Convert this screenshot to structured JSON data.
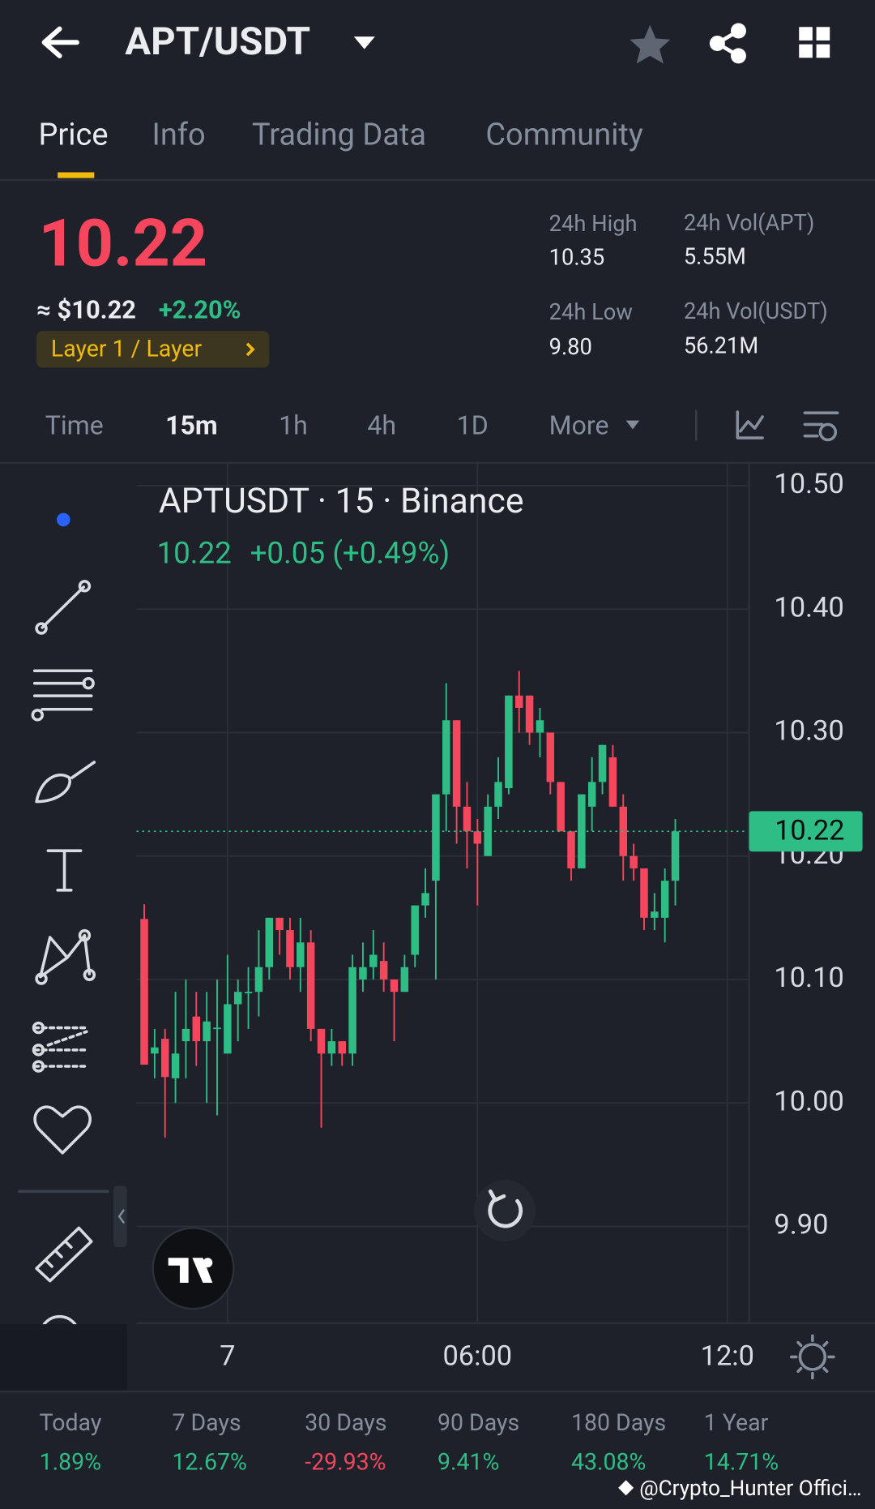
{
  "header": {
    "pair": "APT/USDT"
  },
  "tabs": [
    "Price",
    "Info",
    "Trading Data",
    "Community"
  ],
  "price": {
    "last": "10.22",
    "usd": "≈ $10.22",
    "change": "+2.20%",
    "tag": "Layer 1 / Layer",
    "stats": [
      {
        "label": "24h High",
        "value": "10.35"
      },
      {
        "label": "24h Vol(APT)",
        "value": "5.55M"
      },
      {
        "label": "24h Low",
        "value": "9.80"
      },
      {
        "label": "24h Vol(USDT)",
        "value": "56.21M"
      }
    ]
  },
  "intervals": [
    "Time",
    "15m",
    "1h",
    "4h",
    "1D",
    "More"
  ],
  "chart_data": {
    "type": "candlestick",
    "title": "APTUSDT · 15 · Binance",
    "legend_price": "10.22",
    "legend_change": "+0.05 (+0.49%)",
    "open": [
      10.149,
      10.04,
      10.052,
      10.02,
      10.05,
      10.07,
      10.05,
      10.06,
      10.04,
      10.08,
      10.09,
      10.09,
      10.11,
      10.15,
      10.14,
      10.11,
      10.13,
      10.06,
      10.04,
      10.05,
      10.04,
      10.1,
      10.11,
      10.115,
      10.1,
      10.09,
      10.12,
      10.16,
      10.18,
      10.25,
      10.31,
      10.24,
      10.22,
      10.2,
      10.24,
      10.255,
      10.33,
      10.33,
      10.3,
      10.3,
      10.26,
      10.22,
      10.19,
      10.24,
      10.26,
      10.28,
      10.24,
      10.2,
      10.19,
      10.15,
      10.15,
      10.18
    ],
    "high": [
      10.161,
      10.06,
      10.06,
      10.09,
      10.1,
      10.09,
      10.09,
      10.1,
      10.12,
      10.1,
      10.11,
      10.14,
      10.15,
      10.15,
      10.15,
      10.15,
      10.14,
      10.06,
      10.06,
      10.05,
      10.12,
      10.13,
      10.14,
      10.13,
      10.1,
      10.12,
      10.16,
      10.19,
      10.25,
      10.34,
      10.31,
      10.26,
      10.23,
      10.25,
      10.28,
      10.33,
      10.35,
      10.33,
      10.32,
      10.3,
      10.26,
      10.22,
      10.25,
      10.28,
      10.29,
      10.29,
      10.25,
      10.21,
      10.19,
      10.17,
      10.19,
      10.23
    ],
    "low": [
      10.031,
      10.02,
      9.972,
      10.0,
      10.02,
      10.03,
      10.0,
      9.99,
      10.04,
      10.05,
      10.06,
      10.07,
      10.1,
      10.12,
      10.1,
      10.09,
      10.05,
      9.98,
      10.03,
      10.03,
      10.03,
      10.09,
      10.1,
      10.09,
      10.05,
      10.09,
      10.11,
      10.15,
      10.1,
      10.22,
      10.21,
      10.19,
      10.16,
      10.2,
      10.23,
      10.25,
      10.3,
      10.29,
      10.28,
      10.25,
      10.22,
      10.18,
      10.19,
      10.22,
      10.25,
      10.24,
      10.18,
      10.18,
      10.14,
      10.14,
      10.13,
      10.16
    ],
    "close": [
      10.031,
      10.045,
      10.021,
      10.04,
      10.06,
      10.05,
      10.066,
      10.061,
      10.08,
      10.09,
      10.09,
      10.11,
      10.15,
      10.14,
      10.11,
      10.13,
      10.06,
      10.04,
      10.05,
      10.04,
      10.11,
      10.11,
      10.12,
      10.1,
      10.09,
      10.11,
      10.16,
      10.17,
      10.25,
      10.31,
      10.24,
      10.22,
      10.21,
      10.24,
      10.26,
      10.33,
      10.32,
      10.3,
      10.31,
      10.26,
      10.22,
      10.19,
      10.25,
      10.26,
      10.29,
      10.24,
      10.2,
      10.19,
      10.15,
      10.155,
      10.18,
      10.22
    ],
    "up_color": "#2ebd85",
    "down_color": "#f6465d",
    "ylim": [
      9.82,
      10.52
    ],
    "yticks": [
      {
        "value": 10.5,
        "label": "10.50"
      },
      {
        "value": 10.4,
        "label": "10.40"
      },
      {
        "value": 10.3,
        "label": "10.30"
      },
      {
        "value": 10.2,
        "label": "10.20"
      },
      {
        "value": 10.1,
        "label": "10.10"
      },
      {
        "value": 10.0,
        "label": "10.00"
      },
      {
        "value": 9.9,
        "label": "9.90"
      }
    ],
    "xticks": [
      {
        "value": 8,
        "label": "7"
      },
      {
        "value": 32,
        "label": "06:00"
      },
      {
        "value": 56,
        "label": "12:0"
      }
    ],
    "last": 10.22,
    "grid": true
  },
  "performance": [
    {
      "label": "Today",
      "value": "1.89%"
    },
    {
      "label": "7 Days",
      "value": "12.67%"
    },
    {
      "label": "30 Days",
      "value": "-29.93%"
    },
    {
      "label": "90 Days",
      "value": "9.41%"
    },
    {
      "label": "180 Days",
      "value": "43.08%"
    },
    {
      "label": "1 Year",
      "value": "14.71%"
    }
  ],
  "watermark": "@Crypto_Hunter Offici…"
}
